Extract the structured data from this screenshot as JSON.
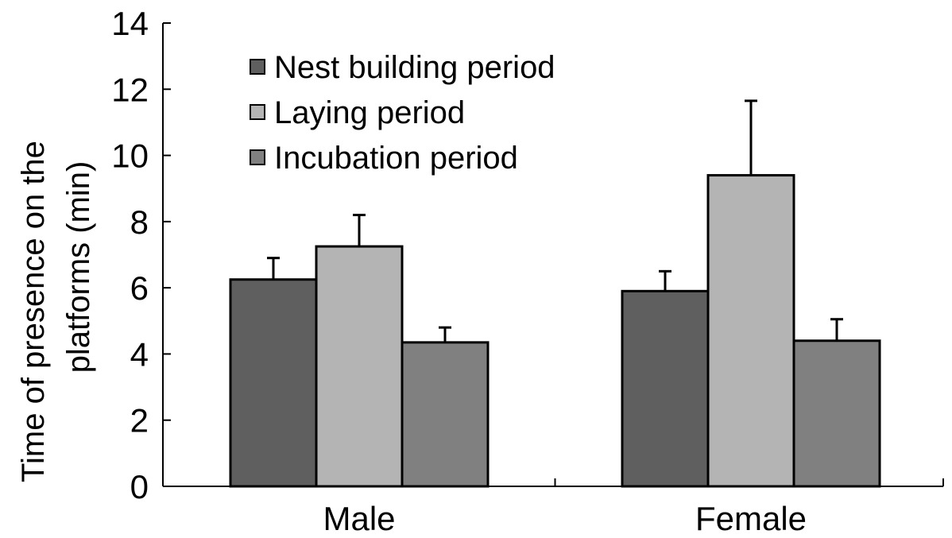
{
  "chart_data": {
    "type": "bar",
    "title": "",
    "ylabel": "Time of presence on the platforms (min)",
    "ylabel_lines": [
      "Time of presence on the",
      "platforms (min)"
    ],
    "xlabel": "",
    "categories": [
      "Male",
      "Female"
    ],
    "ylim": [
      0,
      14
    ],
    "yticks": [
      0,
      2,
      4,
      6,
      8,
      10,
      12,
      14
    ],
    "grid": false,
    "legend_position": "top-left",
    "series": [
      {
        "name": "Nest building period",
        "color": "#5f5f5f",
        "values": [
          6.25,
          5.9
        ],
        "errors": [
          0.65,
          0.6
        ]
      },
      {
        "name": "Laying period",
        "color": "#b4b4b4",
        "values": [
          7.25,
          9.4
        ],
        "errors": [
          0.95,
          2.25
        ]
      },
      {
        "name": "Incubation period",
        "color": "#808080",
        "values": [
          4.35,
          4.4
        ],
        "errors": [
          0.45,
          0.65
        ]
      }
    ]
  }
}
